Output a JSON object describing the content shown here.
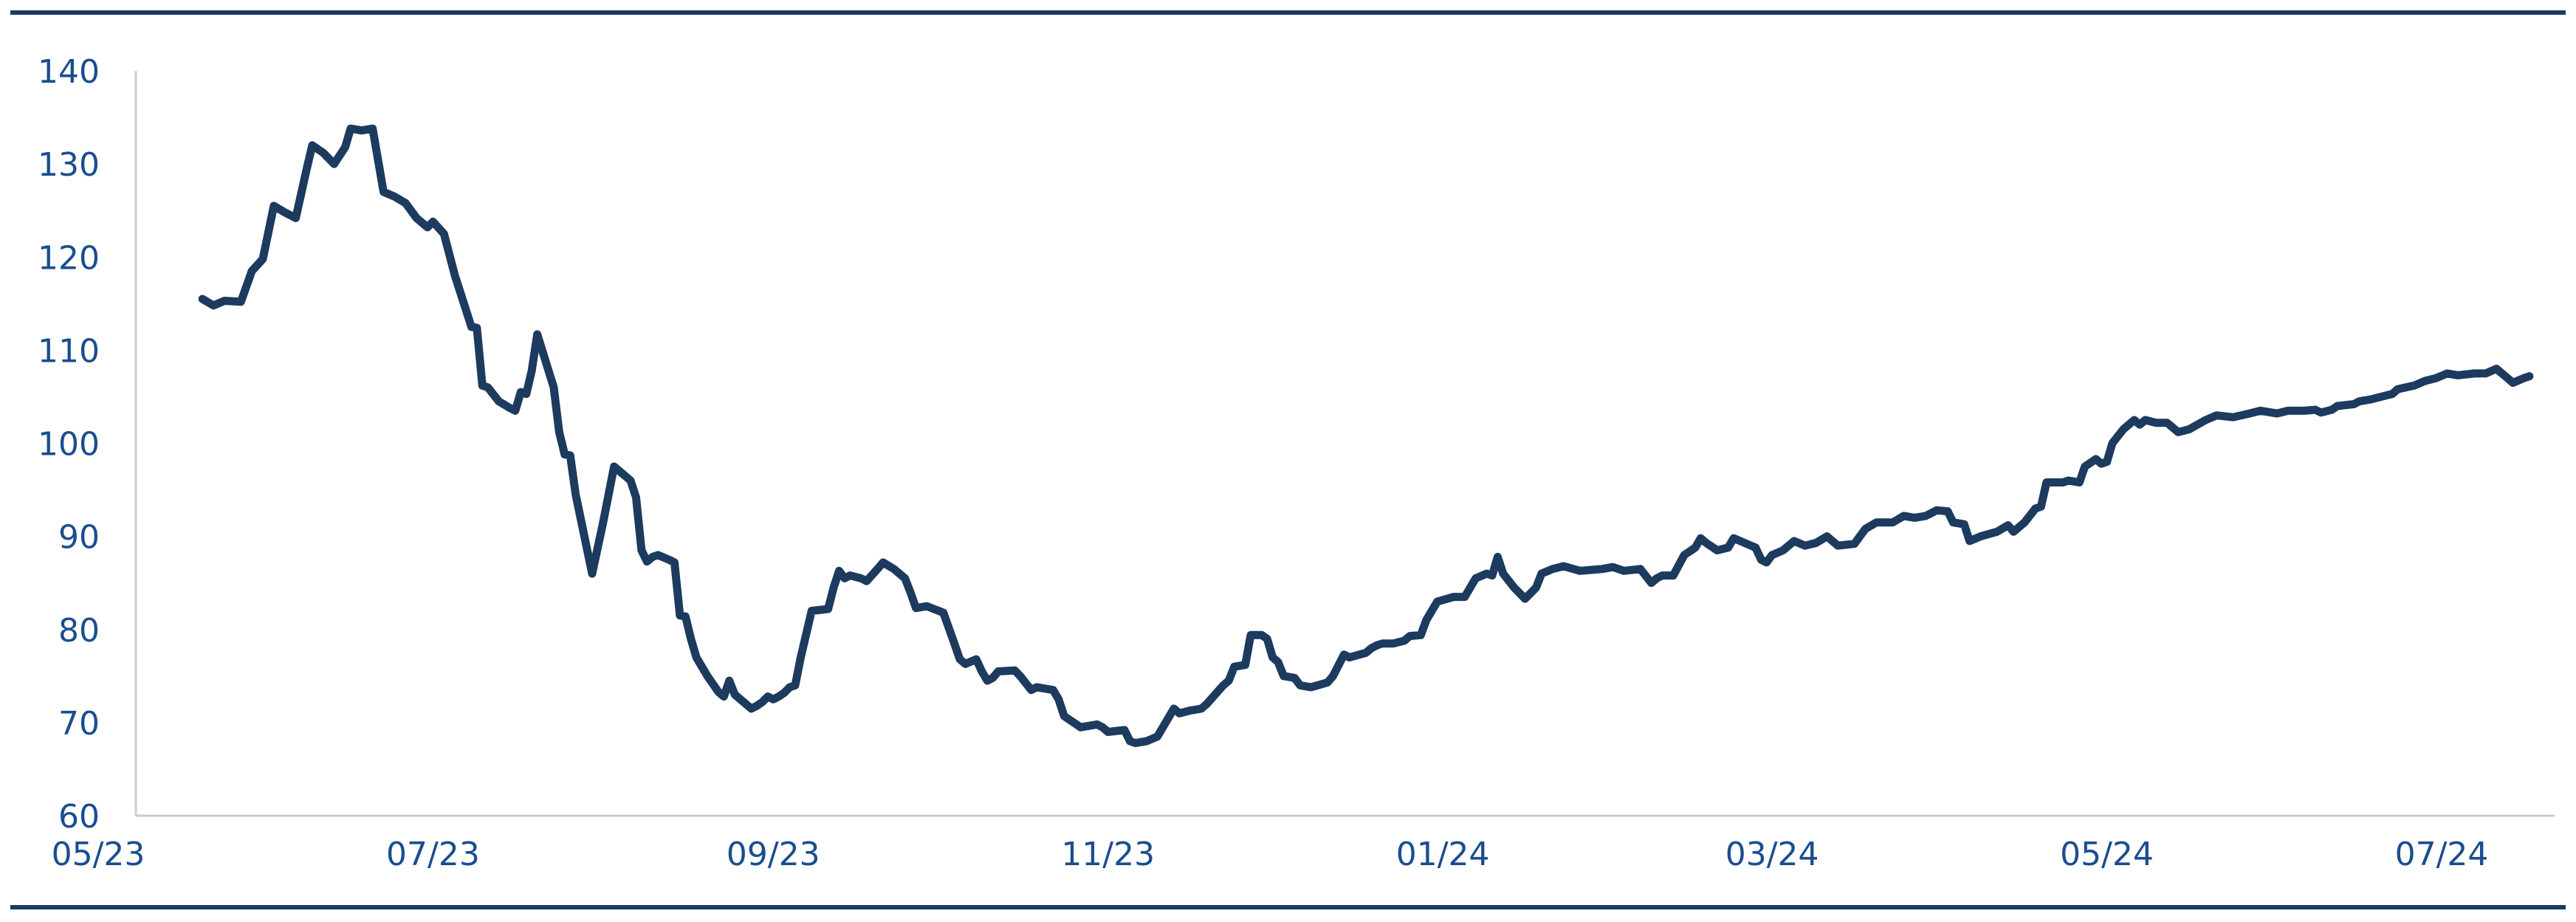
{
  "colors": {
    "line": "#1d3a5f",
    "text": "#1a4d8f",
    "rule": "#1d3a5f",
    "axis": "#c8ccd2"
  },
  "chart_data": {
    "type": "line",
    "title": "",
    "xlabel": "",
    "ylabel": "",
    "ylim": [
      60,
      140
    ],
    "yticks": [
      60,
      70,
      80,
      90,
      100,
      110,
      120,
      130,
      140
    ],
    "grid": false,
    "xticks": [
      {
        "x": "2023-05-01",
        "label": "05/23"
      },
      {
        "x": "2023-07-01",
        "label": "07/23"
      },
      {
        "x": "2023-09-01",
        "label": "09/23"
      },
      {
        "x": "2023-11-01",
        "label": "11/23"
      },
      {
        "x": "2024-01-01",
        "label": "01/24"
      },
      {
        "x": "2024-03-01",
        "label": "03/24"
      },
      {
        "x": "2024-05-01",
        "label": "05/24"
      },
      {
        "x": "2024-07-01",
        "label": "07/24"
      }
    ],
    "series": [
      {
        "points": [
          [
            "2023-05-20",
            115.5
          ],
          [
            "2023-05-22",
            114.8
          ],
          [
            "2023-05-24",
            115.3
          ],
          [
            "2023-05-27",
            115.2
          ],
          [
            "2023-05-29",
            118.5
          ],
          [
            "2023-05-31",
            119.8
          ],
          [
            "2023-06-02",
            125.5
          ],
          [
            "2023-06-04",
            124.8
          ],
          [
            "2023-06-06",
            124.2
          ],
          [
            "2023-06-08",
            129.5
          ],
          [
            "2023-06-09",
            132.0
          ],
          [
            "2023-06-11",
            131.2
          ],
          [
            "2023-06-13",
            130.0
          ],
          [
            "2023-06-15",
            131.8
          ],
          [
            "2023-06-16",
            133.8
          ],
          [
            "2023-06-18",
            133.6
          ],
          [
            "2023-06-20",
            133.8
          ],
          [
            "2023-06-22",
            127.0
          ],
          [
            "2023-06-24",
            126.5
          ],
          [
            "2023-06-26",
            125.8
          ],
          [
            "2023-06-28",
            124.2
          ],
          [
            "2023-06-30",
            123.2
          ],
          [
            "2023-07-01",
            123.8
          ],
          [
            "2023-07-03",
            122.5
          ],
          [
            "2023-07-05",
            118.0
          ],
          [
            "2023-07-08",
            112.5
          ],
          [
            "2023-07-09",
            112.4
          ],
          [
            "2023-07-10",
            106.2
          ],
          [
            "2023-07-11",
            106.0
          ],
          [
            "2023-07-13",
            104.5
          ],
          [
            "2023-07-15",
            103.8
          ],
          [
            "2023-07-16",
            103.5
          ],
          [
            "2023-07-17",
            105.5
          ],
          [
            "2023-07-18",
            105.3
          ],
          [
            "2023-07-19",
            107.8
          ],
          [
            "2023-07-20",
            111.7
          ],
          [
            "2023-07-23",
            106.0
          ],
          [
            "2023-07-24",
            101.2
          ],
          [
            "2023-07-25",
            98.8
          ],
          [
            "2023-07-26",
            98.7
          ],
          [
            "2023-07-27",
            94.5
          ],
          [
            "2023-07-30",
            86.0
          ],
          [
            "2023-08-01",
            91.5
          ],
          [
            "2023-08-03",
            97.5
          ],
          [
            "2023-08-05",
            96.5
          ],
          [
            "2023-08-06",
            96.0
          ],
          [
            "2023-08-07",
            94.2
          ],
          [
            "2023-08-08",
            88.5
          ],
          [
            "2023-08-09",
            87.3
          ],
          [
            "2023-08-10",
            87.8
          ],
          [
            "2023-08-11",
            88.0
          ],
          [
            "2023-08-13",
            87.5
          ],
          [
            "2023-08-14",
            87.2
          ],
          [
            "2023-08-15",
            81.5
          ],
          [
            "2023-08-16",
            81.4
          ],
          [
            "2023-08-17",
            79.0
          ],
          [
            "2023-08-18",
            77.0
          ],
          [
            "2023-08-20",
            75.0
          ],
          [
            "2023-08-22",
            73.3
          ],
          [
            "2023-08-23",
            72.8
          ],
          [
            "2023-08-24",
            74.5
          ],
          [
            "2023-08-25",
            73.0
          ],
          [
            "2023-08-27",
            72.0
          ],
          [
            "2023-08-28",
            71.5
          ],
          [
            "2023-08-29",
            71.8
          ],
          [
            "2023-08-30",
            72.2
          ],
          [
            "2023-08-31",
            72.8
          ],
          [
            "2023-09-01",
            72.5
          ],
          [
            "2023-09-02",
            72.8
          ],
          [
            "2023-09-03",
            73.2
          ],
          [
            "2023-09-04",
            73.8
          ],
          [
            "2023-09-05",
            74.0
          ],
          [
            "2023-09-06",
            77.0
          ],
          [
            "2023-09-08",
            82.0
          ],
          [
            "2023-09-11",
            82.2
          ],
          [
            "2023-09-12",
            84.5
          ],
          [
            "2023-09-13",
            86.3
          ],
          [
            "2023-09-14",
            85.5
          ],
          [
            "2023-09-15",
            85.8
          ],
          [
            "2023-09-17",
            85.5
          ],
          [
            "2023-09-18",
            85.2
          ],
          [
            "2023-09-20",
            86.5
          ],
          [
            "2023-09-21",
            87.2
          ],
          [
            "2023-09-23",
            86.5
          ],
          [
            "2023-09-25",
            85.5
          ],
          [
            "2023-09-26",
            84.0
          ],
          [
            "2023-09-27",
            82.3
          ],
          [
            "2023-09-29",
            82.5
          ],
          [
            "2023-10-02",
            81.8
          ],
          [
            "2023-10-04",
            78.5
          ],
          [
            "2023-10-05",
            76.8
          ],
          [
            "2023-10-06",
            76.3
          ],
          [
            "2023-10-08",
            76.8
          ],
          [
            "2023-10-09",
            75.5
          ],
          [
            "2023-10-10",
            74.5
          ],
          [
            "2023-10-11",
            74.8
          ],
          [
            "2023-10-12",
            75.5
          ],
          [
            "2023-10-15",
            75.6
          ],
          [
            "2023-10-16",
            75.0
          ],
          [
            "2023-10-18",
            73.5
          ],
          [
            "2023-10-19",
            73.8
          ],
          [
            "2023-10-22",
            73.5
          ],
          [
            "2023-10-23",
            72.5
          ],
          [
            "2023-10-24",
            70.7
          ],
          [
            "2023-10-25",
            70.3
          ],
          [
            "2023-10-27",
            69.5
          ],
          [
            "2023-10-30",
            69.8
          ],
          [
            "2023-10-31",
            69.5
          ],
          [
            "2023-11-01",
            69.0
          ],
          [
            "2023-11-04",
            69.2
          ],
          [
            "2023-11-05",
            68.0
          ],
          [
            "2023-11-06",
            67.8
          ],
          [
            "2023-11-08",
            68.0
          ],
          [
            "2023-11-10",
            68.5
          ],
          [
            "2023-11-13",
            71.5
          ],
          [
            "2023-11-14",
            71.0
          ],
          [
            "2023-11-16",
            71.3
          ],
          [
            "2023-11-18",
            71.5
          ],
          [
            "2023-11-19",
            72.0
          ],
          [
            "2023-11-22",
            74.0
          ],
          [
            "2023-11-23",
            74.5
          ],
          [
            "2023-11-24",
            76.0
          ],
          [
            "2023-11-26",
            76.2
          ],
          [
            "2023-11-27",
            79.4
          ],
          [
            "2023-11-29",
            79.4
          ],
          [
            "2023-11-30",
            79.0
          ],
          [
            "2023-12-01",
            77.0
          ],
          [
            "2023-12-02",
            76.5
          ],
          [
            "2023-12-03",
            75.0
          ],
          [
            "2023-12-05",
            74.8
          ],
          [
            "2023-12-06",
            74.0
          ],
          [
            "2023-12-08",
            73.8
          ],
          [
            "2023-12-11",
            74.3
          ],
          [
            "2023-12-12",
            75.0
          ],
          [
            "2023-12-14",
            77.3
          ],
          [
            "2023-12-15",
            77.0
          ],
          [
            "2023-12-18",
            77.5
          ],
          [
            "2023-12-19",
            78.0
          ],
          [
            "2023-12-20",
            78.3
          ],
          [
            "2023-12-21",
            78.5
          ],
          [
            "2023-12-23",
            78.5
          ],
          [
            "2023-12-25",
            78.8
          ],
          [
            "2023-12-26",
            79.3
          ],
          [
            "2023-12-28",
            79.4
          ],
          [
            "2023-12-29",
            81.0
          ],
          [
            "2023-12-31",
            83.0
          ],
          [
            "2024-01-03",
            83.5
          ],
          [
            "2024-01-05",
            83.5
          ],
          [
            "2024-01-07",
            85.5
          ],
          [
            "2024-01-09",
            86.0
          ],
          [
            "2024-01-10",
            85.8
          ],
          [
            "2024-01-11",
            87.8
          ],
          [
            "2024-01-12",
            86.0
          ],
          [
            "2024-01-14",
            84.5
          ],
          [
            "2024-01-16",
            83.3
          ],
          [
            "2024-01-18",
            84.5
          ],
          [
            "2024-01-19",
            86.0
          ],
          [
            "2024-01-21",
            86.5
          ],
          [
            "2024-01-23",
            86.8
          ],
          [
            "2024-01-26",
            86.3
          ],
          [
            "2024-01-30",
            86.5
          ],
          [
            "2024-02-01",
            86.7
          ],
          [
            "2024-02-03",
            86.3
          ],
          [
            "2024-02-06",
            86.5
          ],
          [
            "2024-02-08",
            85.0
          ],
          [
            "2024-02-09",
            85.5
          ],
          [
            "2024-02-10",
            85.8
          ],
          [
            "2024-02-12",
            85.8
          ],
          [
            "2024-02-14",
            88.0
          ],
          [
            "2024-02-16",
            88.8
          ],
          [
            "2024-02-17",
            89.8
          ],
          [
            "2024-02-18",
            89.3
          ],
          [
            "2024-02-20",
            88.5
          ],
          [
            "2024-02-22",
            88.8
          ],
          [
            "2024-02-23",
            89.8
          ],
          [
            "2024-02-25",
            89.3
          ],
          [
            "2024-02-27",
            88.8
          ],
          [
            "2024-02-28",
            87.5
          ],
          [
            "2024-02-29",
            87.2
          ],
          [
            "2024-03-01",
            88.0
          ],
          [
            "2024-03-03",
            88.5
          ],
          [
            "2024-03-05",
            89.5
          ],
          [
            "2024-03-07",
            89.0
          ],
          [
            "2024-03-09",
            89.3
          ],
          [
            "2024-03-11",
            90.0
          ],
          [
            "2024-03-12",
            89.5
          ],
          [
            "2024-03-13",
            89.0
          ],
          [
            "2024-03-16",
            89.2
          ],
          [
            "2024-03-18",
            90.8
          ],
          [
            "2024-03-20",
            91.5
          ],
          [
            "2024-03-23",
            91.5
          ],
          [
            "2024-03-25",
            92.2
          ],
          [
            "2024-03-27",
            92.0
          ],
          [
            "2024-03-29",
            92.2
          ],
          [
            "2024-03-31",
            92.8
          ],
          [
            "2024-04-02",
            92.7
          ],
          [
            "2024-04-03",
            91.5
          ],
          [
            "2024-04-05",
            91.3
          ],
          [
            "2024-04-06",
            89.5
          ],
          [
            "2024-04-08",
            90.0
          ],
          [
            "2024-04-11",
            90.5
          ],
          [
            "2024-04-13",
            91.2
          ],
          [
            "2024-04-14",
            90.5
          ],
          [
            "2024-04-16",
            91.5
          ],
          [
            "2024-04-18",
            93.0
          ],
          [
            "2024-04-19",
            93.2
          ],
          [
            "2024-04-20",
            95.8
          ],
          [
            "2024-04-23",
            95.8
          ],
          [
            "2024-04-24",
            96.0
          ],
          [
            "2024-04-26",
            95.8
          ],
          [
            "2024-04-27",
            97.5
          ],
          [
            "2024-04-29",
            98.3
          ],
          [
            "2024-04-30",
            97.8
          ],
          [
            "2024-05-01",
            98.0
          ],
          [
            "2024-05-02",
            100.0
          ],
          [
            "2024-05-04",
            101.5
          ],
          [
            "2024-05-06",
            102.5
          ],
          [
            "2024-05-07",
            102.0
          ],
          [
            "2024-05-08",
            102.5
          ],
          [
            "2024-05-10",
            102.2
          ],
          [
            "2024-05-12",
            102.2
          ],
          [
            "2024-05-14",
            101.2
          ],
          [
            "2024-05-16",
            101.5
          ],
          [
            "2024-05-19",
            102.5
          ],
          [
            "2024-05-21",
            103.0
          ],
          [
            "2024-05-24",
            102.8
          ],
          [
            "2024-05-27",
            103.2
          ],
          [
            "2024-05-29",
            103.5
          ],
          [
            "2024-06-01",
            103.2
          ],
          [
            "2024-06-03",
            103.5
          ],
          [
            "2024-06-06",
            103.5
          ],
          [
            "2024-06-08",
            103.6
          ],
          [
            "2024-06-09",
            103.3
          ],
          [
            "2024-06-11",
            103.6
          ],
          [
            "2024-06-12",
            104.0
          ],
          [
            "2024-06-15",
            104.2
          ],
          [
            "2024-06-16",
            104.5
          ],
          [
            "2024-06-18",
            104.7
          ],
          [
            "2024-06-20",
            105.0
          ],
          [
            "2024-06-22",
            105.3
          ],
          [
            "2024-06-23",
            105.8
          ],
          [
            "2024-06-26",
            106.2
          ],
          [
            "2024-06-28",
            106.7
          ],
          [
            "2024-06-30",
            107.0
          ],
          [
            "2024-07-02",
            107.5
          ],
          [
            "2024-07-04",
            107.3
          ],
          [
            "2024-07-07",
            107.5
          ],
          [
            "2024-07-09",
            107.5
          ],
          [
            "2024-07-11",
            108.0
          ],
          [
            "2024-07-13",
            107.0
          ],
          [
            "2024-07-14",
            106.5
          ],
          [
            "2024-07-16",
            107.0
          ],
          [
            "2024-07-17",
            107.2
          ]
        ]
      }
    ]
  }
}
